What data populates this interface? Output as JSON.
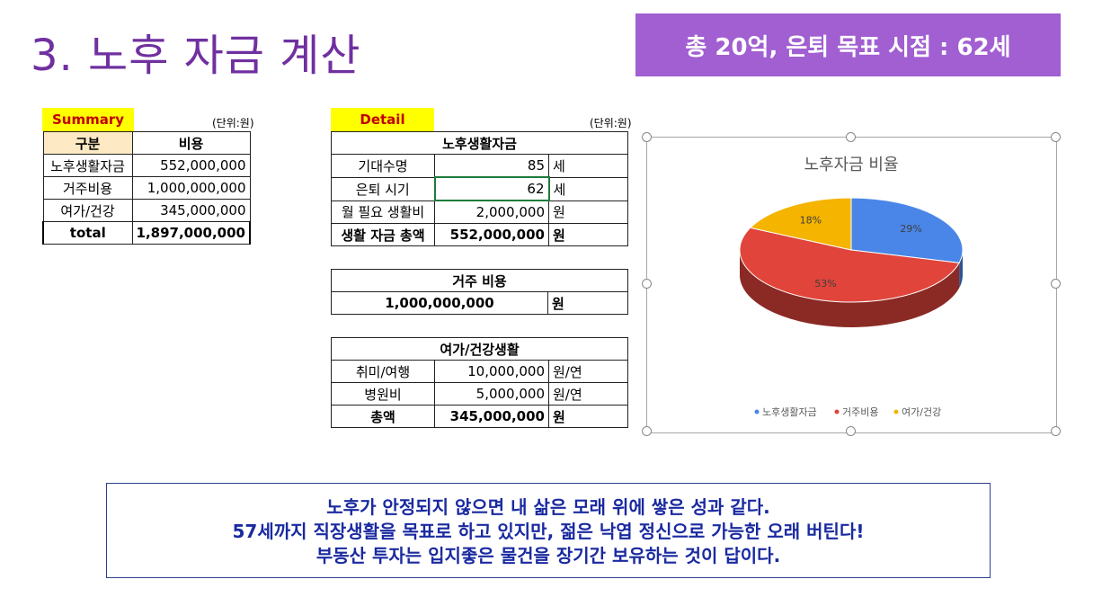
{
  "slide": {
    "title": "3. 노후 자금 계산",
    "badge": "총 20억, 은퇴 목표 시점 : 62세"
  },
  "summary": {
    "label": "Summary",
    "unit": "(단위:원)",
    "headers": [
      "구분",
      "비용"
    ],
    "rows": [
      {
        "name": "노후생활자금",
        "value": "552,000,000"
      },
      {
        "name": "거주비용",
        "value": "1,000,000,000"
      },
      {
        "name": "여가/건강",
        "value": "345,000,000"
      }
    ],
    "total_label": "total",
    "total_value": "1,897,000,000"
  },
  "detail": {
    "label": "Detail",
    "unit": "(단위:원)",
    "living": {
      "title": "노후생활자금",
      "rows": [
        {
          "name": "기대수명",
          "value": "85",
          "unit": "세"
        },
        {
          "name": "은퇴 시기",
          "value": "62",
          "unit": "세"
        },
        {
          "name": "월 필요 생활비",
          "value": "2,000,000",
          "unit": "원"
        },
        {
          "name": "생활 자금 총액",
          "value": "552,000,000",
          "unit": "원"
        }
      ]
    },
    "housing": {
      "title": "거주 비용",
      "value": "1,000,000,000",
      "unit": "원"
    },
    "leisure": {
      "title": "여가/건강생활",
      "rows": [
        {
          "name": "취미/여행",
          "value": "10,000,000",
          "unit": "원/연"
        },
        {
          "name": "병원비",
          "value": "5,000,000",
          "unit": "원/연"
        },
        {
          "name": "총액",
          "value": "345,000,000",
          "unit": "원"
        }
      ]
    }
  },
  "chart_data": {
    "type": "pie",
    "title": "노후자금 비율",
    "categories": [
      "노후생활자금",
      "거주비용",
      "여가/건강"
    ],
    "values": [
      29,
      53,
      18
    ],
    "labels": [
      "29%",
      "53%",
      "18%"
    ],
    "colors": [
      "#4a86e8",
      "#e0443a",
      "#f4b400"
    ],
    "legend": "bottom"
  },
  "quote": {
    "lines": [
      "노후가 안정되지 않으면 내 삶은 모래 위에 쌓은 성과 같다.",
      "57세까지 직장생활을 목표로 하고 있지만, 젊은 낙엽 정신으로 가능한 오래 버틴다!",
      "부동산 투자는 입지좋은 물건을 장기간 보유하는 것이 답이다."
    ]
  }
}
